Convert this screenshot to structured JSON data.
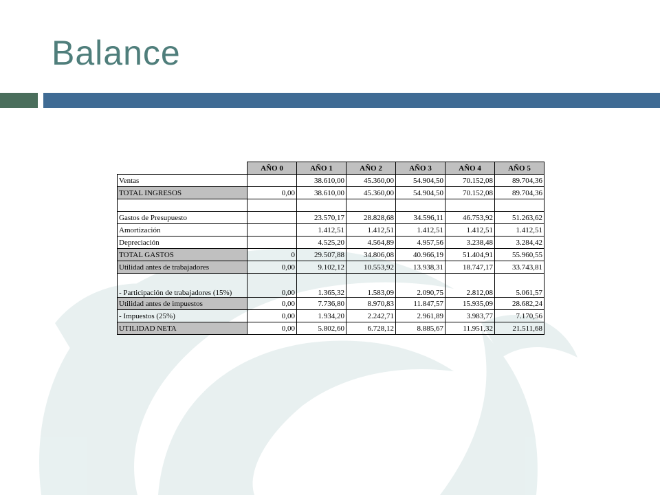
{
  "title": "Balance",
  "table": {
    "header": [
      "AÑO 0",
      "AÑO 1",
      "AÑO 2",
      "AÑO 3",
      "AÑO 4",
      "AÑO 5"
    ],
    "rows": [
      {
        "label": "Ventas",
        "cells": [
          null,
          "38.610,00",
          "45.360,00",
          "54.904,50",
          "70.152,08",
          "89.704,36"
        ]
      },
      {
        "label": "TOTAL INGRESOS",
        "shaded": true,
        "cells": [
          "0,00",
          "38.610,00",
          "45.360,00",
          "54.904,50",
          "70.152,08",
          "89.704,36"
        ]
      },
      {
        "label": null,
        "cells": [
          null,
          null,
          null,
          null,
          null,
          null
        ]
      },
      {
        "label": "Gastos de Presupuesto",
        "cells": [
          null,
          "23.570,17",
          "28.828,68",
          "34.596,11",
          "46.753,92",
          "51.263,62"
        ]
      },
      {
        "label": "Amortización",
        "cells": [
          null,
          "1.412,51",
          "1.412,51",
          "1.412,51",
          "1.412,51",
          "1.412,51"
        ]
      },
      {
        "label": "Depreciación",
        "cells": [
          null,
          "4.525,20",
          "4.564,89",
          "4.957,56",
          "3.238,48",
          "3.284,42"
        ]
      },
      {
        "label": "TOTAL GASTOS",
        "shaded": true,
        "cells": [
          "0",
          "29.507,88",
          "34.806,08",
          "40.966,19",
          "51.404,91",
          "55.960,55"
        ]
      },
      {
        "label": "Utilidad antes de trabajadores",
        "shaded": true,
        "cells": [
          "0,00",
          "9.102,12",
          "10.553,92",
          "13.938,31",
          "18.747,17",
          "33.743,81"
        ]
      },
      {
        "label": " - Participación de trabajadores (15%)",
        "cells": [
          "0,00",
          "1.365,32",
          "1.583,09",
          "2.090,75",
          "2.812,08",
          "5.061,57"
        ]
      },
      {
        "label": "Utilidad antes de impuestos",
        "shaded": true,
        "cells": [
          "0,00",
          "7.736,80",
          "8.970,83",
          "11.847,57",
          "15.935,09",
          "28.682,24"
        ]
      },
      {
        "label": " - Impuestos (25%)",
        "cells": [
          "0,00",
          "1.934,20",
          "2.242,71",
          "2.961,89",
          "3.983,77",
          "7.170,56"
        ]
      },
      {
        "label": "UTILIDAD NETA",
        "shaded": true,
        "cells": [
          "0,00",
          "5.802,60",
          "6.728,12",
          "8.885,67",
          "11.951,32",
          "21.511,68"
        ]
      }
    ]
  }
}
